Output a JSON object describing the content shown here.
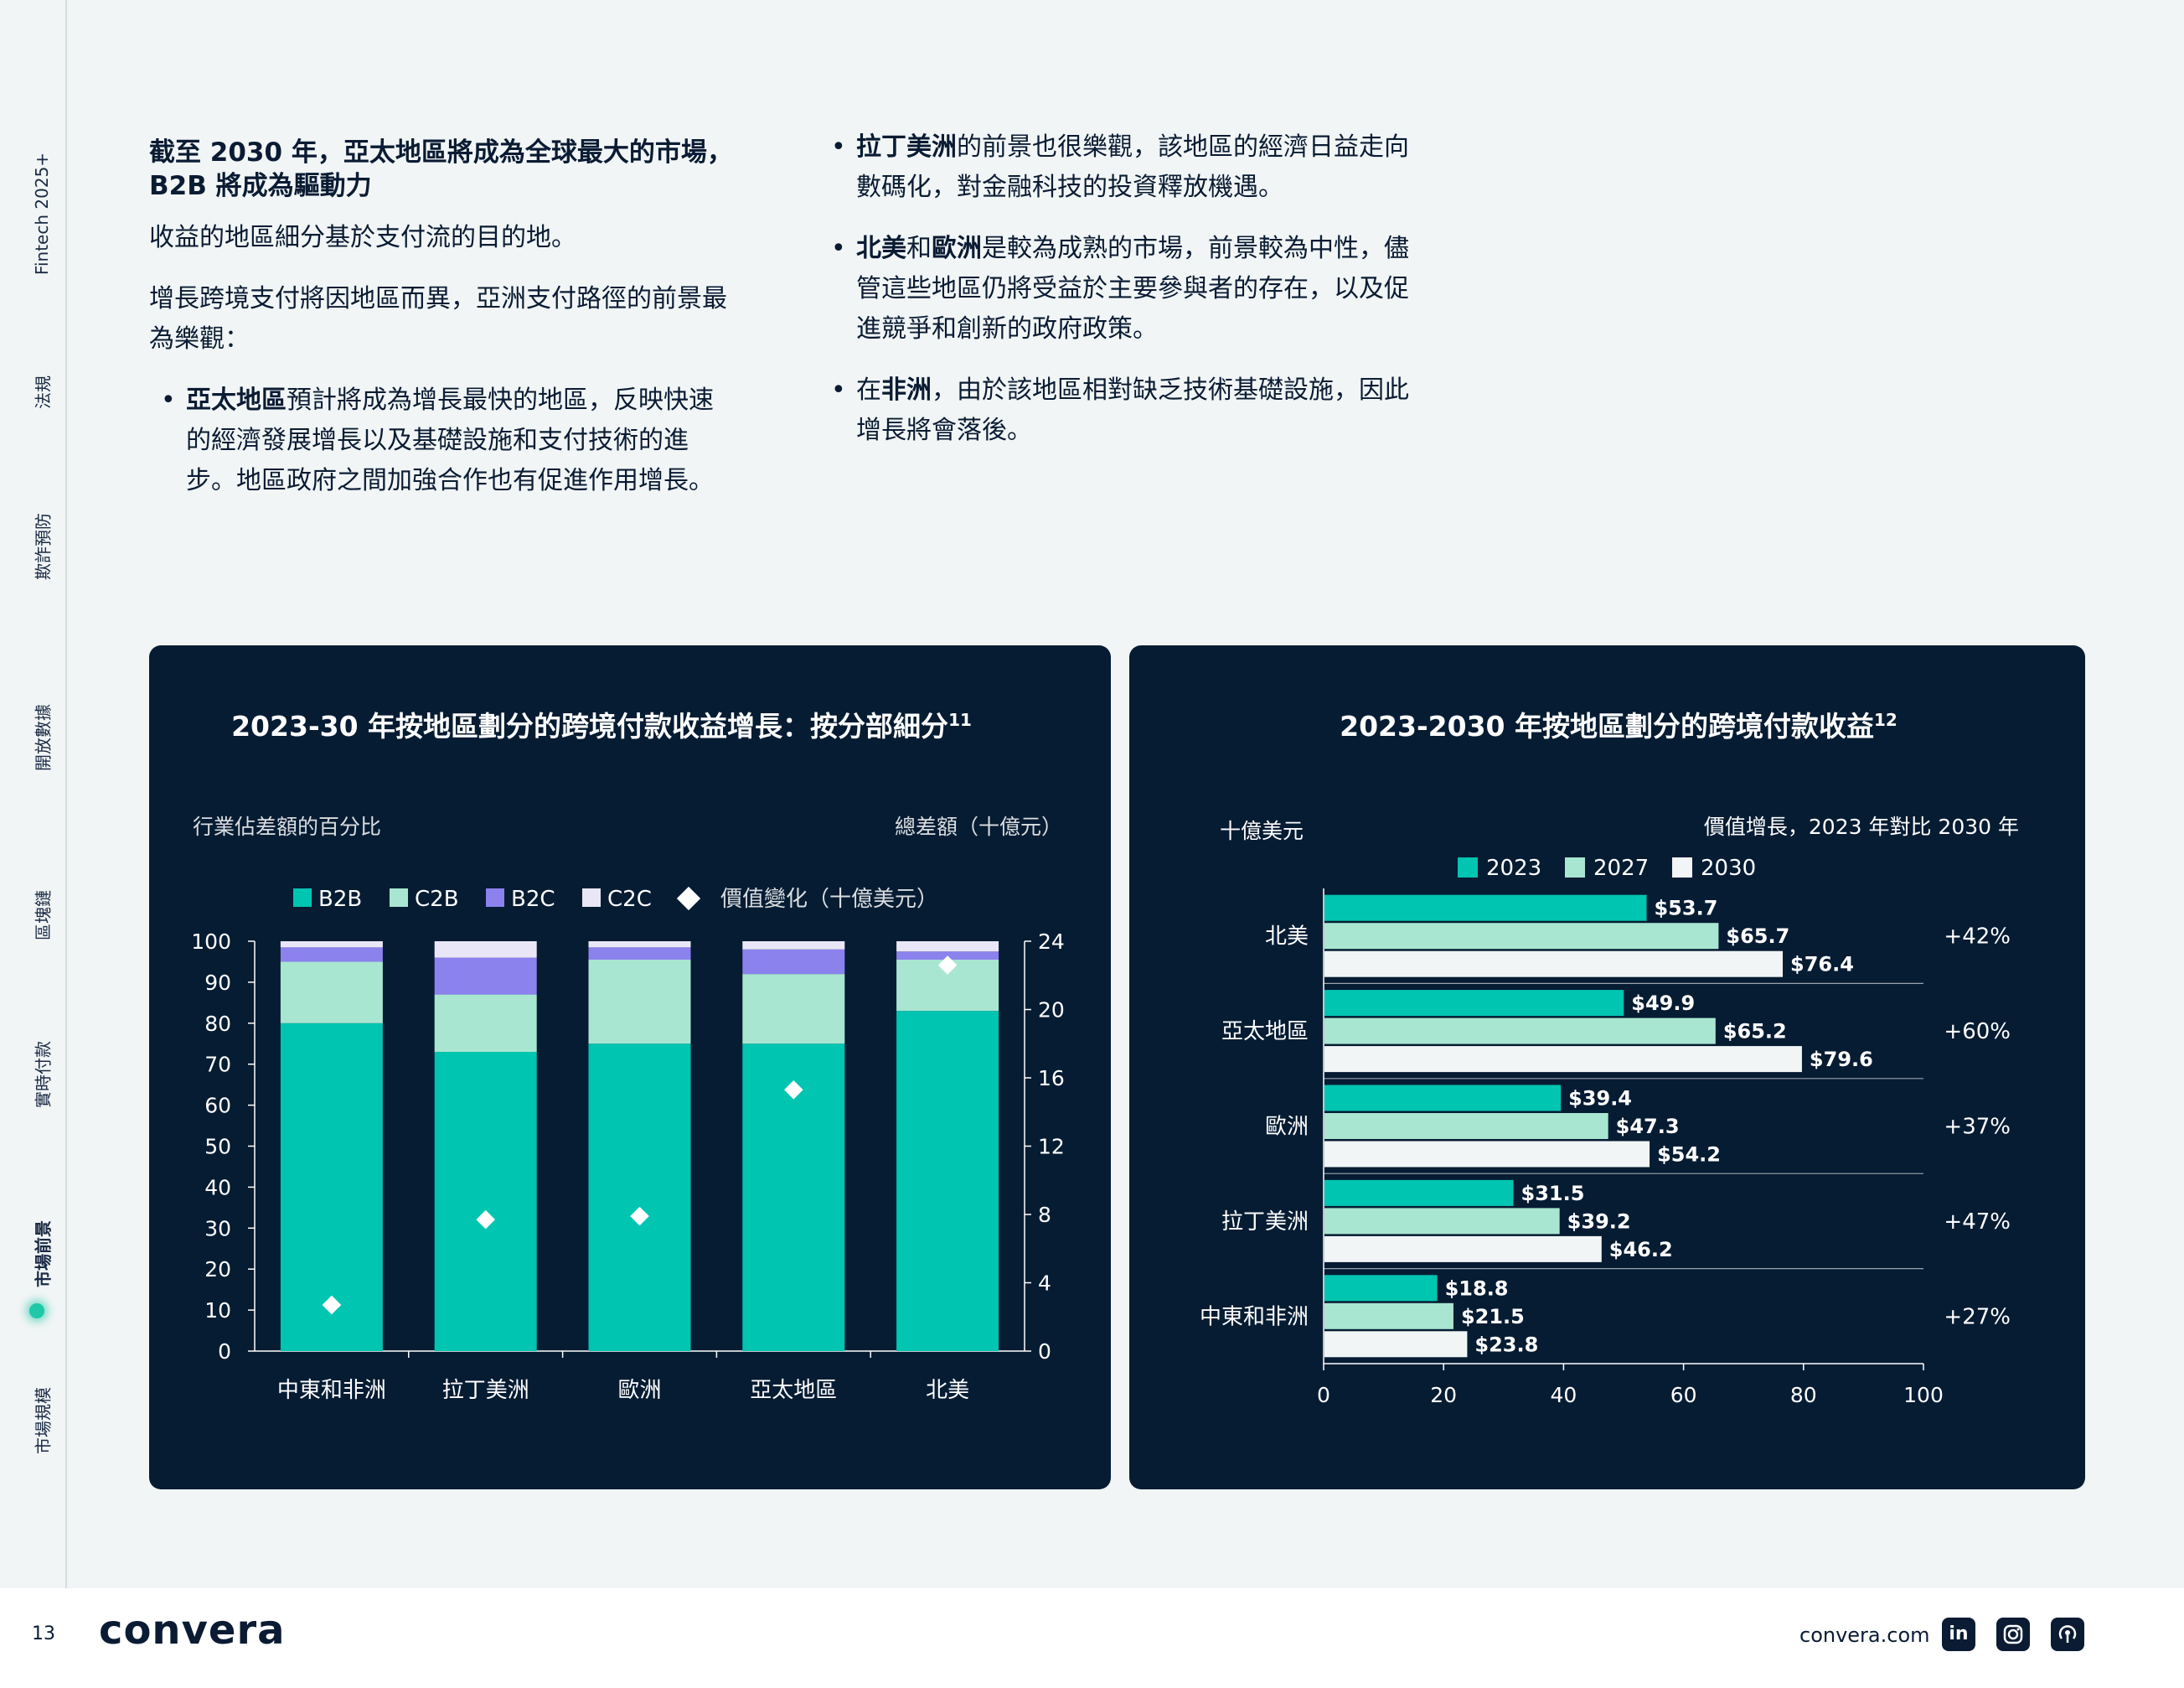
{
  "sidenav": {
    "items": [
      "Fintech 2025+",
      "法規",
      "欺詐預防",
      "開放數據",
      "區塊鏈",
      "實時付款",
      "市場前景",
      "市場規模"
    ],
    "active": "市場前景"
  },
  "left_col": {
    "heading_line1": "截至 2030 年，亞太地區將成為全球最大的市場，",
    "heading_line2": "B2B 將成為驅動力",
    "para1": "收益的地區細分基於支付流的目的地。",
    "para2_line1": "增長跨境支付將因地區而異，亞洲支付路徑的前景最",
    "para2_line2": "為樂觀：",
    "bullet1_bold": "亞太地區",
    "bullet1_line1": "預計將成為增長最快的地區，反映快速",
    "bullet1_line2": "的經濟發展增長以及基礎設施和支付技術的進",
    "bullet1_line3": "步。地區政府之間加強合作也有促進作用增長。"
  },
  "right_col": {
    "b1_bold": "拉丁美洲",
    "b1_line1": "的前景也很樂觀，該地區的經濟日益走向",
    "b1_line2": "數碼化，對金融科技的投資釋放機遇。",
    "b2_bold1": "北美",
    "b2_mid": "和",
    "b2_bold2": "歐洲",
    "b2_line1": "是較為成熟的市場，前景較為中性，儘",
    "b2_line2": "管這些地區仍將受益於主要參與者的存在，以及促",
    "b2_line3": "進競爭和創新的政府政策。",
    "b3_lead": "在",
    "b3_bold": "非洲",
    "b3_line1": "，由於該地區相對缺乏技術基礎設施，因此",
    "b3_line2": "增長將會落後。"
  },
  "footer": {
    "page": "13",
    "logo": "convera",
    "site": "convera.com",
    "social_icons": [
      "linkedin-icon",
      "instagram-icon",
      "podcast-icon"
    ]
  },
  "colors": {
    "panel_bg": "#061c33",
    "b2b": "#00c5b1",
    "c2b": "#a9e6d1",
    "b2c": "#8b82ee",
    "c2c": "#e9e7f7",
    "y2030": "#f1f5f5"
  },
  "chart_data": [
    {
      "type": "bar",
      "stacked": true,
      "title": "2023-30 年按地區劃分的跨境付款收益增長：按分部細分",
      "title_sup": "11",
      "ylabel": "行業佔差額的百分比",
      "y2label": "總差額（十億元）",
      "ylim": [
        0,
        100
      ],
      "y2lim": [
        0,
        24
      ],
      "yticks": [
        0,
        10,
        20,
        30,
        40,
        50,
        60,
        70,
        80,
        90,
        100
      ],
      "y2ticks": [
        0,
        4,
        8,
        12,
        16,
        20,
        24
      ],
      "categories": [
        "中東和非洲",
        "拉丁美洲",
        "歐洲",
        "亞太地區",
        "北美"
      ],
      "series": [
        {
          "name": "B2B",
          "values": [
            80,
            73,
            75,
            75,
            83
          ]
        },
        {
          "name": "C2B",
          "values": [
            15,
            14,
            20.5,
            17,
            12.5
          ]
        },
        {
          "name": "B2C",
          "values": [
            3.5,
            9,
            3,
            6,
            2
          ]
        },
        {
          "name": "C2C",
          "values": [
            1.5,
            4,
            1.5,
            2,
            2.5
          ]
        }
      ],
      "marker_series": {
        "name": "價值變化（十億美元）",
        "values": [
          2.7,
          7.7,
          7.9,
          15.3,
          22.6
        ]
      },
      "legend": "top"
    },
    {
      "type": "bar",
      "orientation": "horizontal",
      "title": "2023-2030 年按地區劃分的跨境付款收益",
      "title_sup": "12",
      "ylabel": "十億美元",
      "growth_label": "價值增長，2023 年對比 2030 年",
      "xlim": [
        0,
        100
      ],
      "xticks": [
        0,
        20,
        40,
        60,
        80,
        100
      ],
      "categories": [
        "北美",
        "亞太地區",
        "歐洲",
        "拉丁美洲",
        "中東和非洲"
      ],
      "series": [
        {
          "name": "2023",
          "values": [
            53.7,
            49.9,
            39.4,
            31.5,
            18.8
          ],
          "labels": [
            "$53.7",
            "$49.9",
            "$39.4",
            "$31.5",
            "$18.8"
          ]
        },
        {
          "name": "2027",
          "values": [
            65.7,
            65.2,
            47.3,
            39.2,
            21.5
          ],
          "labels": [
            "$65.7",
            "$65.2",
            "$47.3",
            "$39.2",
            "$21.5"
          ]
        },
        {
          "name": "2030",
          "values": [
            76.4,
            79.6,
            54.2,
            46.2,
            23.8
          ],
          "labels": [
            "$76.4",
            "$79.6",
            "$54.2",
            "$46.2",
            "$23.8"
          ]
        }
      ],
      "growth": [
        "+42%",
        "+60%",
        "+37%",
        "+47%",
        "+27%"
      ],
      "legend": "top"
    }
  ]
}
